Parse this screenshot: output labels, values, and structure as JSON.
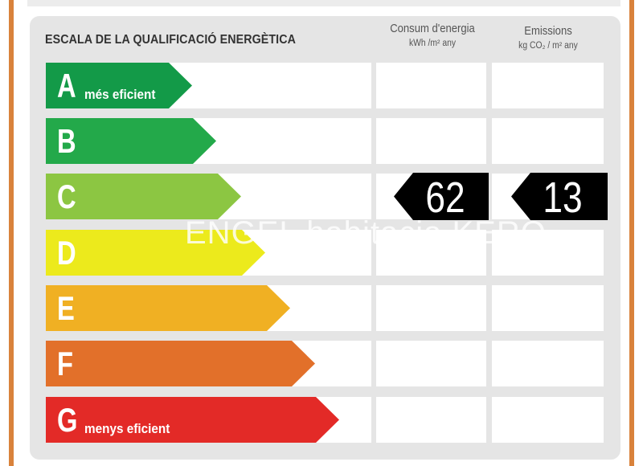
{
  "title": "ESCALA DE LA QUALIFICACIÓ ENERGÈTICA",
  "columns": {
    "energy": {
      "label": "Consum d'energia",
      "unit": "kWh /m² any"
    },
    "emissions": {
      "label": "Emissions",
      "unit": "kg CO₂ / m² any"
    }
  },
  "classes": [
    {
      "letter": "A",
      "caption": "més eficient",
      "color": "#139a48"
    },
    {
      "letter": "B",
      "caption": "",
      "color": "#23a94a"
    },
    {
      "letter": "C",
      "caption": "",
      "color": "#8cc642"
    },
    {
      "letter": "D",
      "caption": "",
      "color": "#ecea1c"
    },
    {
      "letter": "E",
      "caption": "",
      "color": "#f0b023"
    },
    {
      "letter": "F",
      "caption": "",
      "color": "#e2702a"
    },
    {
      "letter": "G",
      "caption": "menys eficient",
      "color": "#e32a27"
    }
  ],
  "rating": {
    "class": "C",
    "energy_value": "62",
    "emissions_value": "13"
  },
  "watermark": "ENGEL habitacia KERO",
  "colors": {
    "frame": "#d9823b",
    "panel": "#e5e5e5",
    "tag": "#000000"
  }
}
